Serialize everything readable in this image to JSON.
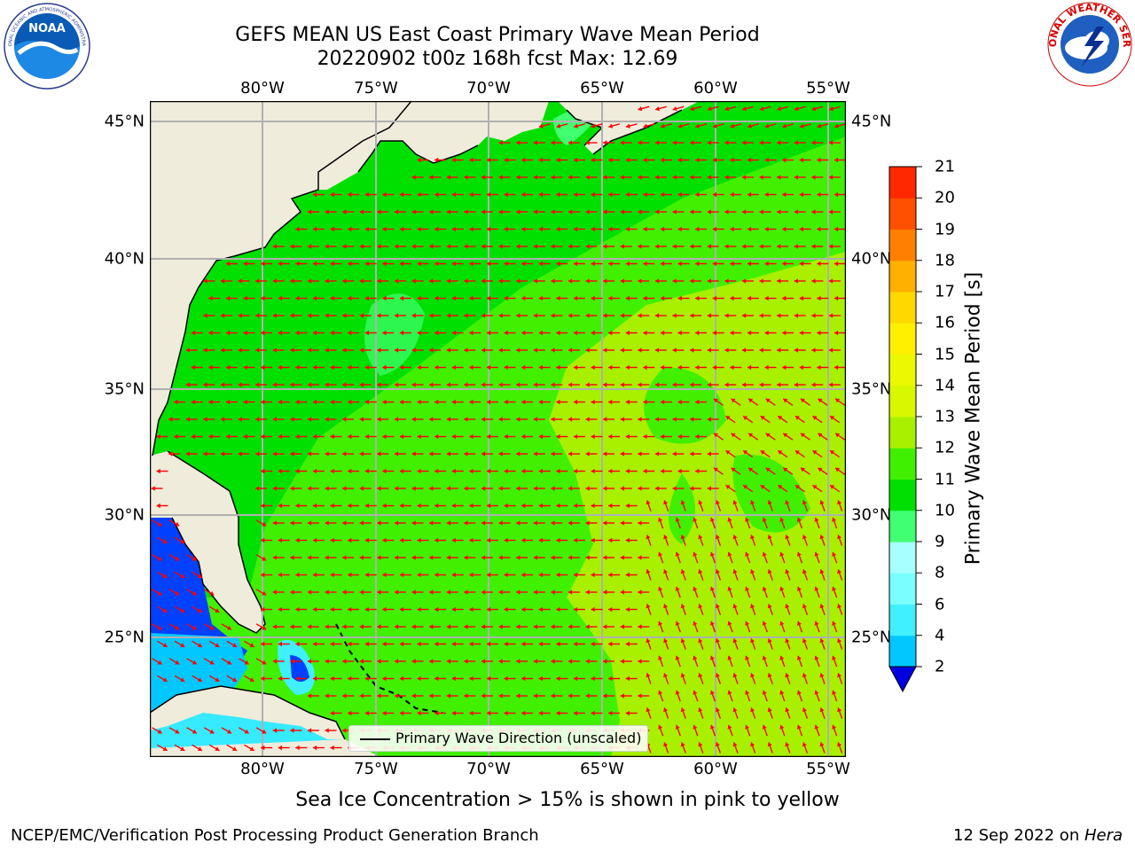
{
  "header": {
    "title_line1": "GEFS MEAN US East Coast Primary Wave Mean Period",
    "title_line2": "20220902 t00z 168h fcst   Max: 12.69"
  },
  "map": {
    "extent": {
      "lon": [
        -85,
        -54.2
      ],
      "lat": [
        20.5,
        46.2
      ]
    },
    "lon_ticks": [
      "80°W",
      "75°W",
      "70°W",
      "65°W",
      "60°W",
      "55°W"
    ],
    "lat_ticks": [
      "45°N",
      "40°N",
      "35°N",
      "30°N",
      "25°N"
    ],
    "gridlines": true,
    "vector_color": "#ff0000",
    "land_color": "#efecdc",
    "legend_label": "Primary Wave Direction (unscaled)",
    "legend_position": "bottom-center"
  },
  "colorbar": {
    "title": "Primary Wave Mean Period [s]",
    "tick_labels": [
      "2",
      "4",
      "6",
      "8",
      "9",
      "10",
      "11",
      "12",
      "13",
      "14",
      "15",
      "16",
      "17",
      "18",
      "19",
      "20",
      "21"
    ],
    "colors": [
      "#0040ff",
      "#00c8ff",
      "#40f0ff",
      "#7affff",
      "#a8ffff",
      "#40ff70",
      "#00e000",
      "#40f000",
      "#a8f000",
      "#d8f800",
      "#eaf800",
      "#fff000",
      "#ffd800",
      "#ffb000",
      "#ff8000",
      "#ff5000",
      "#ff2800",
      "#ff0000"
    ],
    "extend": "min"
  },
  "footer": {
    "note": "Sea Ice Concentration > 15% is shown in pink to yellow",
    "left": "NCEP/EMC/Verification Post Processing Product Generation Branch",
    "date": "12 Sep 2022 on ",
    "machine": "Hera"
  },
  "logos": {
    "noaa_text": "NOAA",
    "noaa_ring": "NATIONAL OCEANIC AND ATMOSPHERIC ADMINISTRATION · U.S. DEPARTMENT OF COMMERCE",
    "nws_ring": "NATIONAL WEATHER SERVICE"
  }
}
